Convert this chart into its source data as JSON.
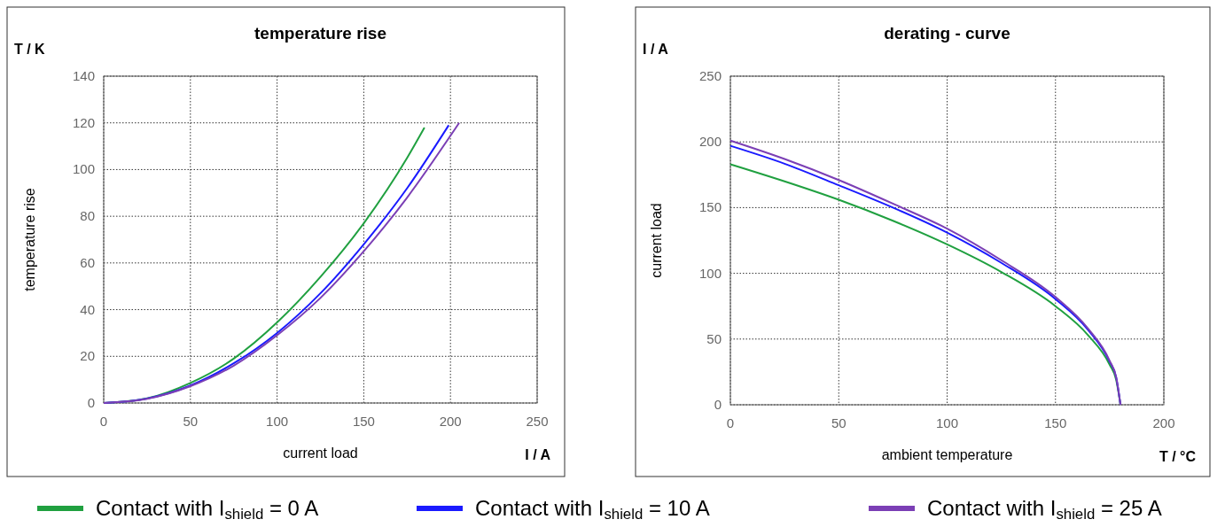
{
  "chart_data": [
    {
      "type": "line",
      "title": "temperature rise",
      "xlabel": "current load",
      "ylabel": "temperature rise",
      "annotations": [
        "T / K",
        "I / A"
      ],
      "xlim": [
        0,
        250
      ],
      "xticks": [
        0,
        50,
        100,
        150,
        200,
        250
      ],
      "ylim": [
        0,
        140
      ],
      "yticks": [
        0,
        20,
        40,
        60,
        80,
        100,
        120,
        140
      ],
      "grid": true,
      "legend": "bottom",
      "line_style": "solid",
      "series": [
        {
          "name": "Contact with I$_{shield}$ = 0 A",
          "color": "#20a040",
          "x": [
            0,
            25,
            50,
            75,
            100,
            125,
            150,
            175,
            185
          ],
          "values": [
            0,
            2,
            8.6,
            19,
            34.5,
            54,
            77,
            105,
            118
          ]
        },
        {
          "name": "Contact with I$_{shield}$ = 10 A",
          "color": "#1a1aff",
          "x": [
            0,
            25,
            50,
            75,
            100,
            125,
            150,
            175,
            199
          ],
          "values": [
            0,
            1.9,
            7.5,
            17,
            30,
            47,
            68,
            92,
            119
          ]
        },
        {
          "name": "Contact with I$_{shield}$ = 25 A",
          "color": "#7b3fb5",
          "x": [
            0,
            25,
            50,
            75,
            100,
            125,
            150,
            175,
            205
          ],
          "values": [
            0,
            1.8,
            7.2,
            16,
            29,
            45,
            65,
            88,
            120
          ]
        }
      ]
    },
    {
      "type": "line",
      "title": "derating - curve",
      "xlabel": "ambient temperature",
      "ylabel": "current load",
      "annotations": [
        "I / A",
        "T / °C"
      ],
      "xlim": [
        0,
        200
      ],
      "xticks": [
        0,
        50,
        100,
        150,
        200
      ],
      "ylim": [
        0,
        250
      ],
      "yticks": [
        0,
        50,
        100,
        150,
        200,
        250
      ],
      "grid": true,
      "line_style": "solid",
      "series": [
        {
          "color": "#20a040",
          "x": [
            0,
            25,
            50,
            75,
            100,
            125,
            150,
            165,
            175,
            178,
            180
          ],
          "values": [
            183,
            170,
            156,
            140,
            122,
            101,
            75,
            53,
            30.5,
            19,
            0
          ]
        },
        {
          "color": "#1a1aff",
          "x": [
            0,
            25,
            50,
            75,
            100,
            125,
            150,
            165,
            175,
            178,
            180
          ],
          "values": [
            197,
            183.4,
            167,
            150,
            131,
            108,
            80.4,
            57,
            32.8,
            21,
            0
          ]
        },
        {
          "color": "#7b3fb5",
          "x": [
            0,
            25,
            50,
            75,
            100,
            125,
            150,
            165,
            175,
            178,
            180
          ],
          "values": [
            201,
            187,
            171,
            153,
            134,
            110,
            82,
            58,
            33.5,
            21,
            0
          ]
        }
      ]
    }
  ]
}
